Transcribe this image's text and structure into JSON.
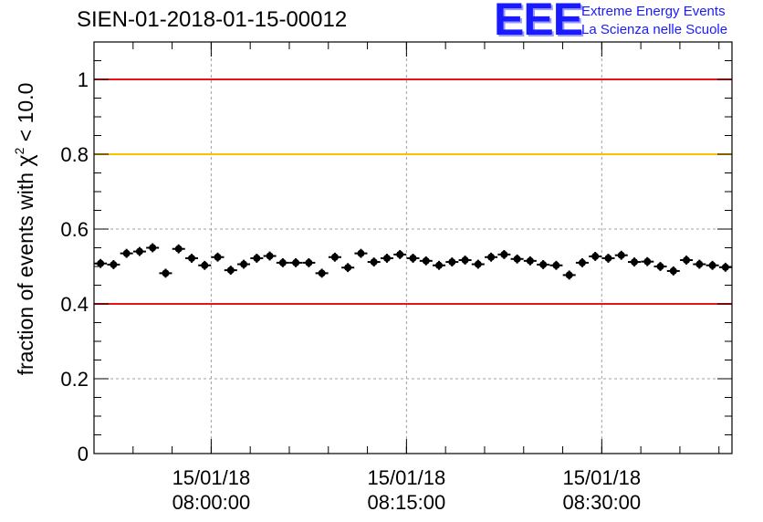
{
  "title": "SIEN-01-2018-01-15-00012",
  "logo": {
    "mark": "EEE",
    "line1": "Extreme Energy Events",
    "line2": "La Scienza nelle Scuole",
    "color": "#1a1aff"
  },
  "chart_data": {
    "type": "scatter",
    "title": "SIEN-01-2018-01-15-00012",
    "ylabel_prefix": "fraction of events with ",
    "ylabel_symbol": "χ",
    "ylabel_sup": "2",
    "ylabel_suffix": " < 10.0",
    "xlabel": "",
    "x_unit": "time (15/01/18, hh:mm:ss)",
    "xlim": [
      "07:51:00",
      "08:40:00"
    ],
    "ylim": [
      0,
      1.1
    ],
    "yticks": [
      {
        "v": 0,
        "label": "0"
      },
      {
        "v": 0.2,
        "label": "0.2"
      },
      {
        "v": 0.4,
        "label": "0.4"
      },
      {
        "v": 0.6,
        "label": "0.6"
      },
      {
        "v": 0.8,
        "label": "0.8"
      },
      {
        "v": 1,
        "label": "1"
      }
    ],
    "xticks": [
      {
        "t": "08:00:00",
        "date": "15/01/18",
        "time": "08:00:00"
      },
      {
        "t": "08:15:00",
        "date": "15/01/18",
        "time": "08:15:00"
      },
      {
        "t": "08:30:00",
        "date": "15/01/18",
        "time": "08:30:00"
      }
    ],
    "grid": true,
    "reference_lines": [
      {
        "y": 1.0,
        "color": "#e8141a"
      },
      {
        "y": 0.8,
        "color": "#ffc000"
      },
      {
        "y": 0.4,
        "color": "#e8141a"
      }
    ],
    "marker_color": "#000000",
    "series": [
      {
        "x": [
          "07:51:30",
          "07:52:30",
          "07:53:30",
          "07:54:30",
          "07:55:30",
          "07:56:30",
          "07:57:30",
          "07:58:30",
          "07:59:30",
          "08:00:30",
          "08:01:30",
          "08:02:30",
          "08:03:30",
          "08:04:30",
          "08:05:30",
          "08:06:30",
          "08:07:30",
          "08:08:30",
          "08:09:30",
          "08:10:30",
          "08:11:30",
          "08:12:30",
          "08:13:30",
          "08:14:30",
          "08:15:30",
          "08:16:30",
          "08:17:30",
          "08:18:30",
          "08:19:30",
          "08:20:30",
          "08:21:30",
          "08:22:30",
          "08:23:30",
          "08:24:30",
          "08:25:30",
          "08:26:30",
          "08:27:30",
          "08:28:30",
          "08:29:30",
          "08:30:30",
          "08:31:30",
          "08:32:30",
          "08:33:30",
          "08:34:30",
          "08:35:30",
          "08:36:30",
          "08:37:30",
          "08:38:30",
          "08:39:30"
        ],
        "y": [
          0.508,
          0.505,
          0.535,
          0.54,
          0.55,
          0.482,
          0.547,
          0.522,
          0.503,
          0.525,
          0.49,
          0.506,
          0.522,
          0.528,
          0.51,
          0.51,
          0.51,
          0.482,
          0.525,
          0.497,
          0.535,
          0.512,
          0.522,
          0.532,
          0.522,
          0.515,
          0.503,
          0.512,
          0.517,
          0.506,
          0.525,
          0.532,
          0.52,
          0.515,
          0.505,
          0.503,
          0.477,
          0.51,
          0.527,
          0.522,
          0.53,
          0.512,
          0.513,
          0.5,
          0.488,
          0.517,
          0.506,
          0.503,
          0.498
        ],
        "yerr": 0.012
      }
    ]
  }
}
